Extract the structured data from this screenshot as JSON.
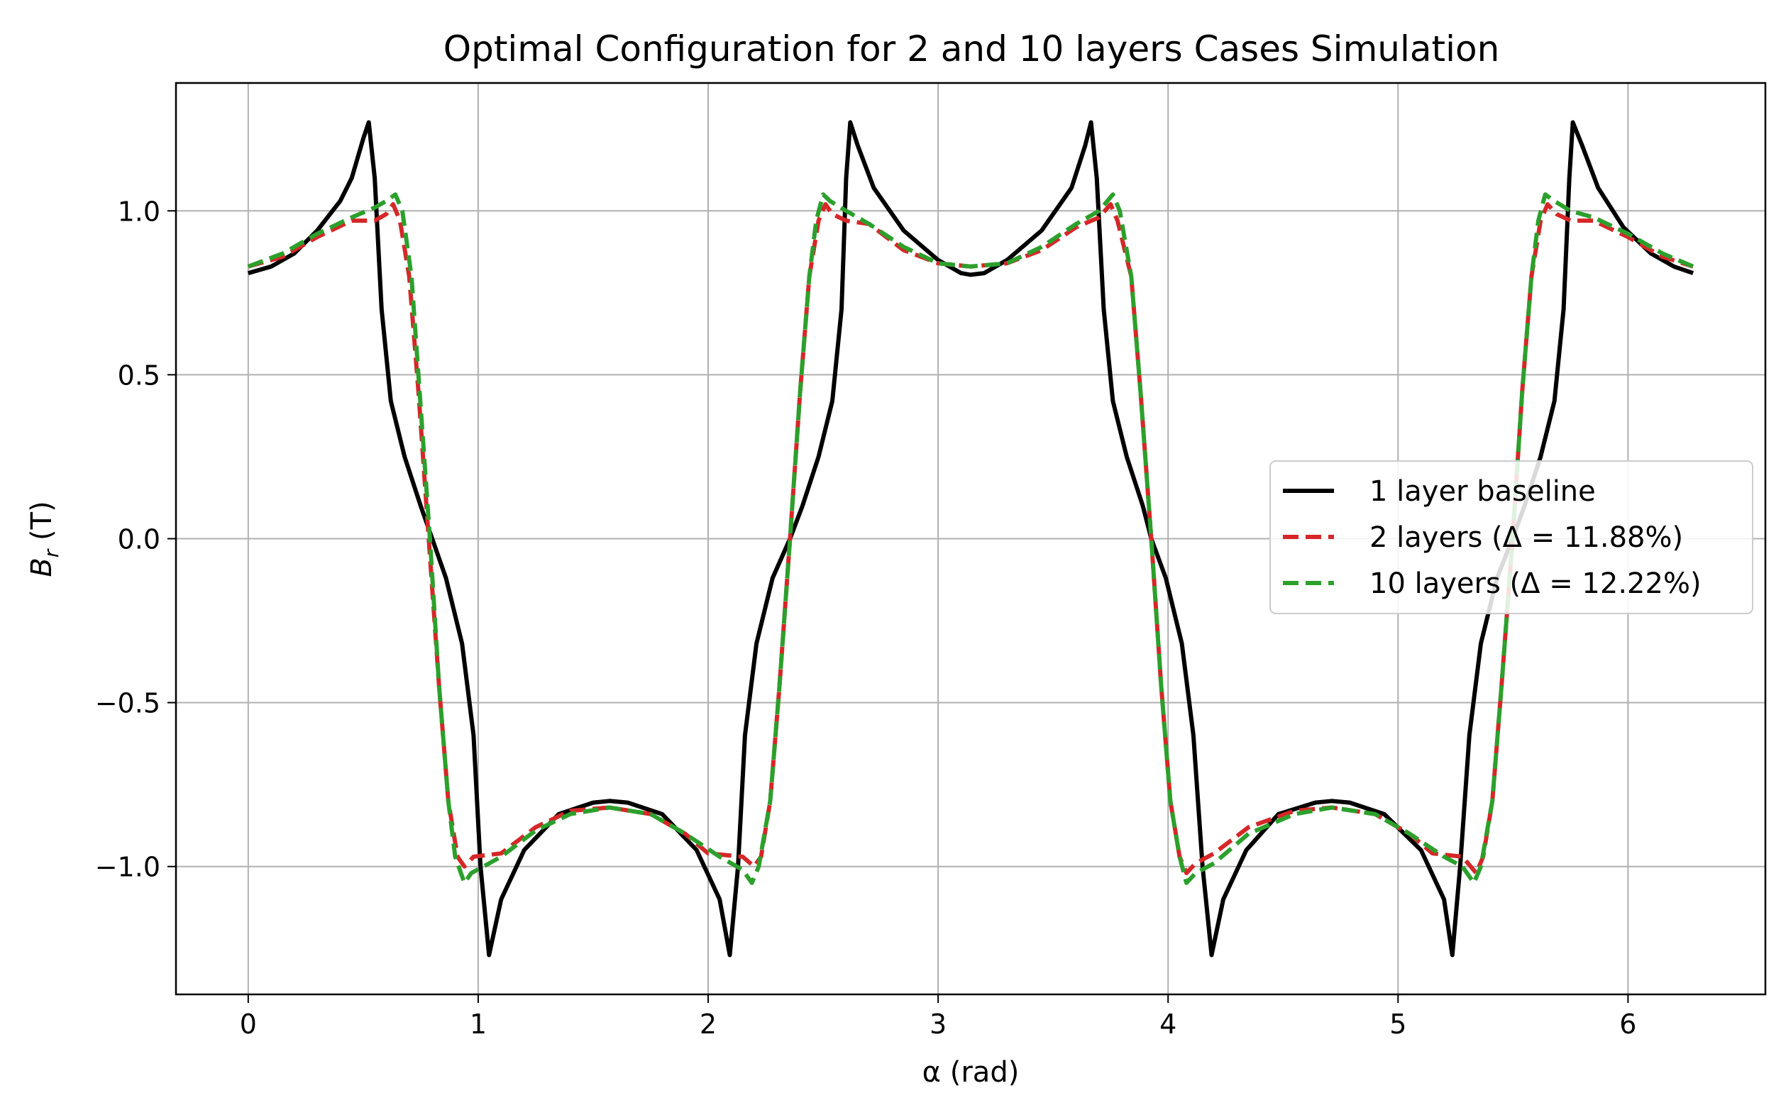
{
  "chart_data": {
    "type": "line",
    "title": "Optimal Configuration for 2 and 10 layers Cases Simulation",
    "xlabel": "α (rad)",
    "ylabel": "B_r (T)",
    "ylabel_base": "B",
    "ylabel_sub": "r",
    "ylabel_unit": " (T)",
    "xlim": [
      -0.3142,
      6.5974
    ],
    "ylim": [
      -1.39,
      1.39
    ],
    "xticks": [
      0,
      1,
      2,
      3,
      4,
      5,
      6
    ],
    "xtick_labels": [
      "0",
      "1",
      "2",
      "3",
      "4",
      "5",
      "6"
    ],
    "yticks": [
      -1.0,
      -0.5,
      0.0,
      0.5,
      1.0
    ],
    "ytick_labels": [
      "−1.0",
      "−0.5",
      "0.0",
      "0.5",
      "1.0"
    ],
    "grid": true,
    "legend_position": "center-right",
    "series": [
      {
        "name": "1 layer baseline",
        "color": "#000000",
        "style": "solid",
        "points": [
          [
            0,
            0.81
          ],
          [
            0.1,
            0.83
          ],
          [
            0.2,
            0.87
          ],
          [
            0.3,
            0.94
          ],
          [
            0.4,
            1.03
          ],
          [
            0.45,
            1.1
          ],
          [
            0.5,
            1.22
          ],
          [
            0.524,
            1.27
          ],
          [
            0.55,
            1.1
          ],
          [
            0.58,
            0.7
          ],
          [
            0.62,
            0.42
          ],
          [
            0.68,
            0.25
          ],
          [
            0.75,
            0.1
          ],
          [
            0.8,
            0.0
          ],
          [
            0.86,
            -0.12
          ],
          [
            0.93,
            -0.32
          ],
          [
            0.98,
            -0.6
          ],
          [
            1.01,
            -1.0
          ],
          [
            1.047,
            -1.27
          ],
          [
            1.1,
            -1.1
          ],
          [
            1.2,
            -0.95
          ],
          [
            1.35,
            -0.84
          ],
          [
            1.5,
            -0.805
          ],
          [
            1.571,
            -0.8
          ],
          [
            1.65,
            -0.805
          ],
          [
            1.8,
            -0.84
          ],
          [
            1.95,
            -0.95
          ],
          [
            2.05,
            -1.1
          ],
          [
            2.094,
            -1.27
          ],
          [
            2.13,
            -1.0
          ],
          [
            2.16,
            -0.6
          ],
          [
            2.21,
            -0.32
          ],
          [
            2.28,
            -0.12
          ],
          [
            2.356,
            0.0
          ],
          [
            2.41,
            0.1
          ],
          [
            2.48,
            0.25
          ],
          [
            2.54,
            0.42
          ],
          [
            2.58,
            0.7
          ],
          [
            2.6,
            1.1
          ],
          [
            2.618,
            1.27
          ],
          [
            2.65,
            1.2
          ],
          [
            2.72,
            1.07
          ],
          [
            2.85,
            0.94
          ],
          [
            3.0,
            0.85
          ],
          [
            3.1,
            0.81
          ],
          [
            3.1416,
            0.805
          ],
          [
            3.2,
            0.81
          ],
          [
            3.3,
            0.85
          ],
          [
            3.45,
            0.94
          ],
          [
            3.58,
            1.07
          ],
          [
            3.64,
            1.2
          ],
          [
            3.665,
            1.27
          ],
          [
            3.69,
            1.1
          ],
          [
            3.72,
            0.7
          ],
          [
            3.76,
            0.42
          ],
          [
            3.82,
            0.25
          ],
          [
            3.89,
            0.1
          ],
          [
            3.927,
            0.0
          ],
          [
            3.99,
            -0.12
          ],
          [
            4.06,
            -0.32
          ],
          [
            4.11,
            -0.6
          ],
          [
            4.15,
            -1.0
          ],
          [
            4.189,
            -1.27
          ],
          [
            4.24,
            -1.1
          ],
          [
            4.34,
            -0.95
          ],
          [
            4.48,
            -0.84
          ],
          [
            4.64,
            -0.805
          ],
          [
            4.712,
            -0.8
          ],
          [
            4.79,
            -0.805
          ],
          [
            4.94,
            -0.84
          ],
          [
            5.1,
            -0.95
          ],
          [
            5.2,
            -1.1
          ],
          [
            5.236,
            -1.27
          ],
          [
            5.27,
            -1.0
          ],
          [
            5.31,
            -0.6
          ],
          [
            5.36,
            -0.32
          ],
          [
            5.43,
            -0.12
          ],
          [
            5.498,
            0.0
          ],
          [
            5.55,
            0.1
          ],
          [
            5.62,
            0.25
          ],
          [
            5.68,
            0.42
          ],
          [
            5.72,
            0.7
          ],
          [
            5.745,
            1.1
          ],
          [
            5.76,
            1.27
          ],
          [
            5.8,
            1.2
          ],
          [
            5.87,
            1.07
          ],
          [
            5.98,
            0.95
          ],
          [
            6.1,
            0.87
          ],
          [
            6.2,
            0.83
          ],
          [
            6.283,
            0.81
          ]
        ]
      },
      {
        "name": "2 layers (Δ = 11.88%)",
        "color": "#d62728",
        "style": "dashed",
        "points": [
          [
            0,
            0.83
          ],
          [
            0.15,
            0.86
          ],
          [
            0.3,
            0.92
          ],
          [
            0.45,
            0.97
          ],
          [
            0.55,
            0.97
          ],
          [
            0.6,
            0.99
          ],
          [
            0.63,
            1.02
          ],
          [
            0.66,
            0.97
          ],
          [
            0.7,
            0.8
          ],
          [
            0.74,
            0.45
          ],
          [
            0.785,
            0.0
          ],
          [
            0.83,
            -0.45
          ],
          [
            0.87,
            -0.8
          ],
          [
            0.91,
            -0.97
          ],
          [
            0.94,
            -1.0
          ],
          [
            0.98,
            -0.97
          ],
          [
            1.1,
            -0.96
          ],
          [
            1.25,
            -0.88
          ],
          [
            1.4,
            -0.83
          ],
          [
            1.571,
            -0.82
          ],
          [
            1.75,
            -0.84
          ],
          [
            1.9,
            -0.9
          ],
          [
            2.0,
            -0.96
          ],
          [
            2.15,
            -0.97
          ],
          [
            2.2,
            -1.0
          ],
          [
            2.23,
            -0.97
          ],
          [
            2.27,
            -0.8
          ],
          [
            2.31,
            -0.45
          ],
          [
            2.356,
            0.0
          ],
          [
            2.4,
            0.45
          ],
          [
            2.44,
            0.8
          ],
          [
            2.48,
            0.97
          ],
          [
            2.51,
            1.02
          ],
          [
            2.54,
            0.99
          ],
          [
            2.6,
            0.97
          ],
          [
            2.7,
            0.96
          ],
          [
            2.85,
            0.88
          ],
          [
            3.0,
            0.84
          ],
          [
            3.1416,
            0.83
          ],
          [
            3.3,
            0.84
          ],
          [
            3.45,
            0.88
          ],
          [
            3.6,
            0.95
          ],
          [
            3.7,
            0.98
          ],
          [
            3.75,
            1.02
          ],
          [
            3.78,
            0.97
          ],
          [
            3.84,
            0.8
          ],
          [
            3.88,
            0.45
          ],
          [
            3.927,
            0.0
          ],
          [
            3.97,
            -0.45
          ],
          [
            4.01,
            -0.8
          ],
          [
            4.05,
            -0.97
          ],
          [
            4.08,
            -1.02
          ],
          [
            4.12,
            -0.99
          ],
          [
            4.2,
            -0.96
          ],
          [
            4.35,
            -0.88
          ],
          [
            4.55,
            -0.83
          ],
          [
            4.712,
            -0.82
          ],
          [
            4.9,
            -0.84
          ],
          [
            5.05,
            -0.9
          ],
          [
            5.15,
            -0.96
          ],
          [
            5.28,
            -0.97
          ],
          [
            5.34,
            -1.02
          ],
          [
            5.37,
            -0.97
          ],
          [
            5.41,
            -0.8
          ],
          [
            5.45,
            -0.45
          ],
          [
            5.498,
            0.0
          ],
          [
            5.54,
            0.45
          ],
          [
            5.58,
            0.8
          ],
          [
            5.62,
            0.97
          ],
          [
            5.65,
            1.02
          ],
          [
            5.69,
            0.99
          ],
          [
            5.75,
            0.97
          ],
          [
            5.85,
            0.97
          ],
          [
            6.0,
            0.92
          ],
          [
            6.15,
            0.86
          ],
          [
            6.283,
            0.83
          ]
        ]
      },
      {
        "name": "10 layers (Δ = 12.22%)",
        "color": "#2ca02c",
        "style": "dashed",
        "points": [
          [
            0,
            0.83
          ],
          [
            0.15,
            0.87
          ],
          [
            0.3,
            0.93
          ],
          [
            0.45,
            0.98
          ],
          [
            0.55,
            1.01
          ],
          [
            0.6,
            1.03
          ],
          [
            0.64,
            1.05
          ],
          [
            0.67,
            1.0
          ],
          [
            0.71,
            0.8
          ],
          [
            0.745,
            0.45
          ],
          [
            0.79,
            0.0
          ],
          [
            0.83,
            -0.45
          ],
          [
            0.87,
            -0.8
          ],
          [
            0.9,
            -0.97
          ],
          [
            0.94,
            -1.05
          ],
          [
            0.97,
            -1.02
          ],
          [
            1.1,
            -0.97
          ],
          [
            1.25,
            -0.89
          ],
          [
            1.4,
            -0.84
          ],
          [
            1.571,
            -0.82
          ],
          [
            1.75,
            -0.84
          ],
          [
            1.9,
            -0.9
          ],
          [
            2.05,
            -0.97
          ],
          [
            2.15,
            -1.01
          ],
          [
            2.19,
            -1.05
          ],
          [
            2.22,
            -1.0
          ],
          [
            2.27,
            -0.8
          ],
          [
            2.31,
            -0.45
          ],
          [
            2.356,
            0.0
          ],
          [
            2.4,
            0.45
          ],
          [
            2.44,
            0.8
          ],
          [
            2.47,
            0.97
          ],
          [
            2.5,
            1.05
          ],
          [
            2.53,
            1.03
          ],
          [
            2.6,
            1.0
          ],
          [
            2.7,
            0.96
          ],
          [
            2.85,
            0.89
          ],
          [
            3.0,
            0.84
          ],
          [
            3.1416,
            0.83
          ],
          [
            3.3,
            0.84
          ],
          [
            3.45,
            0.89
          ],
          [
            3.6,
            0.96
          ],
          [
            3.7,
            1.0
          ],
          [
            3.76,
            1.05
          ],
          [
            3.79,
            1.0
          ],
          [
            3.84,
            0.8
          ],
          [
            3.88,
            0.45
          ],
          [
            3.927,
            0.0
          ],
          [
            3.97,
            -0.45
          ],
          [
            4.01,
            -0.8
          ],
          [
            4.05,
            -0.97
          ],
          [
            4.08,
            -1.05
          ],
          [
            4.12,
            -1.02
          ],
          [
            4.2,
            -0.99
          ],
          [
            4.35,
            -0.9
          ],
          [
            4.55,
            -0.84
          ],
          [
            4.712,
            -0.82
          ],
          [
            4.9,
            -0.84
          ],
          [
            5.05,
            -0.9
          ],
          [
            5.2,
            -0.97
          ],
          [
            5.28,
            -1.0
          ],
          [
            5.33,
            -1.05
          ],
          [
            5.36,
            -1.0
          ],
          [
            5.41,
            -0.8
          ],
          [
            5.45,
            -0.45
          ],
          [
            5.498,
            0.0
          ],
          [
            5.54,
            0.45
          ],
          [
            5.58,
            0.8
          ],
          [
            5.61,
            0.97
          ],
          [
            5.64,
            1.05
          ],
          [
            5.68,
            1.03
          ],
          [
            5.75,
            1.0
          ],
          [
            5.85,
            0.98
          ],
          [
            6.0,
            0.93
          ],
          [
            6.15,
            0.87
          ],
          [
            6.283,
            0.83
          ]
        ]
      }
    ]
  }
}
